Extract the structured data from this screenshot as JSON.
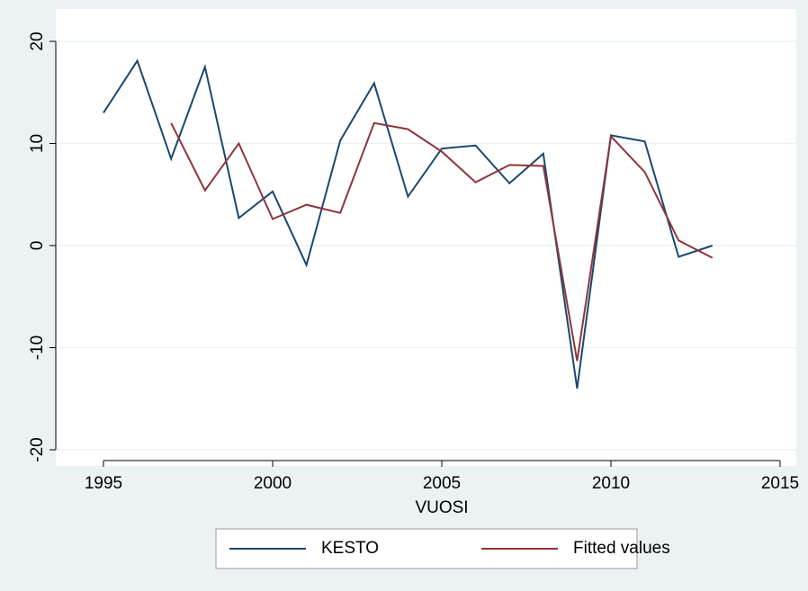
{
  "chart_data": {
    "type": "line",
    "xlabel": "VUOSI",
    "x": [
      1995,
      1996,
      1997,
      1998,
      1999,
      2000,
      2001,
      2002,
      2003,
      2004,
      2005,
      2006,
      2007,
      2008,
      2009,
      2010,
      2011,
      2012,
      2013
    ],
    "series": [
      {
        "name": "KESTO",
        "color": "#1a476f",
        "values": [
          13,
          18.1,
          8.5,
          17.5,
          2.7,
          5.3,
          -1.9,
          10.3,
          15.9,
          4.8,
          9.5,
          9.8,
          6.1,
          9.0,
          -14,
          10.8,
          10.2,
          -1.1,
          0
        ]
      },
      {
        "name": "Fitted values",
        "color": "#90353b",
        "values": [
          null,
          null,
          12,
          5.4,
          10,
          2.6,
          4.0,
          3.2,
          12,
          11.4,
          9.2,
          6.2,
          7.9,
          7.8,
          -11.3,
          10.7,
          7.2,
          0.5,
          -1.2
        ]
      }
    ],
    "xlim": [
      1995,
      2015
    ],
    "xticks": [
      1995,
      2000,
      2005,
      2010,
      2015
    ],
    "ylim": [
      -20,
      20
    ],
    "yticks": [
      -20,
      -10,
      0,
      10,
      20
    ],
    "grid": true,
    "legend": "bottom"
  }
}
